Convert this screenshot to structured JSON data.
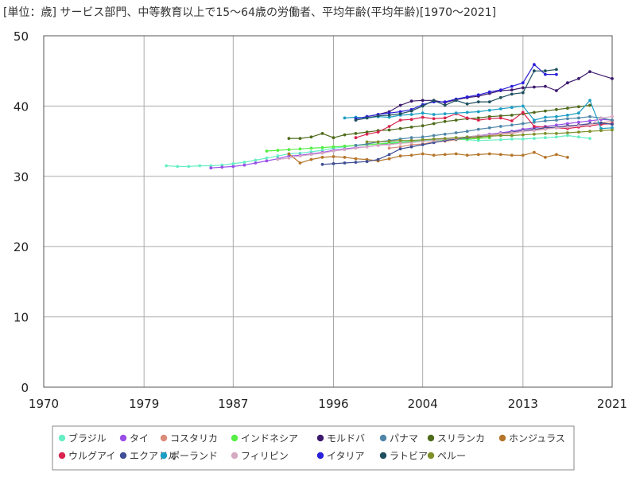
{
  "chart_data": {
    "type": "line",
    "title": "[単位：歳] サービス部門、中等教育以上で15～64歳の労働者、平均年齢(平均年齢)[1970～2021]",
    "xlabel": "",
    "ylabel": "",
    "xlim": [
      1970,
      2021
    ],
    "ylim": [
      0,
      50
    ],
    "x_ticks": [
      "1970",
      "1979",
      "1987",
      "1996",
      "2004",
      "2013",
      "2021"
    ],
    "y_ticks": [
      "0",
      "10",
      "20",
      "30",
      "40",
      "50"
    ],
    "grid": true,
    "legend_position": "bottom",
    "series": [
      {
        "name": "ブラジル",
        "color": "#66eec4",
        "x": [
          1981,
          1982,
          1983,
          1984,
          1985,
          1986,
          1987,
          1988,
          1989,
          1990,
          1991,
          1992,
          1993,
          1994,
          1995,
          1996,
          1997,
          1998,
          1999,
          2000,
          2001,
          2002,
          2003,
          2004,
          2005,
          2006,
          2007,
          2008,
          2009,
          2011,
          2012,
          2013,
          2014,
          2015,
          2016,
          2017,
          2018,
          2019
        ],
        "y": [
          31.5,
          31.4,
          31.4,
          31.5,
          31.5,
          31.6,
          31.8,
          32.0,
          32.3,
          32.6,
          32.9,
          33.2,
          33.3,
          33.5,
          33.7,
          34.0,
          34.2,
          34.4,
          34.5,
          34.6,
          34.8,
          34.9,
          35.0,
          35.1,
          35.2,
          35.3,
          35.3,
          35.2,
          35.1,
          35.2,
          35.3,
          35.3,
          35.4,
          35.5,
          35.6,
          35.8,
          35.6,
          35.4
        ]
      },
      {
        "name": "タイ",
        "color": "#9a4fe8",
        "x": [
          1985,
          1986,
          1987,
          1988,
          1989,
          1990,
          1991,
          1992,
          1993,
          1994,
          1995,
          1996,
          1997,
          1998,
          1999,
          2000,
          2001,
          2002,
          2003,
          2004,
          2005,
          2006,
          2007,
          2008,
          2009,
          2010,
          2011,
          2012,
          2013,
          2014,
          2015,
          2016,
          2017,
          2018,
          2019,
          2020,
          2021
        ],
        "y": [
          31.2,
          31.3,
          31.4,
          31.6,
          31.9,
          32.2,
          32.5,
          32.9,
          33.0,
          33.2,
          33.4,
          33.7,
          33.9,
          34.1,
          34.2,
          34.4,
          34.6,
          34.8,
          34.9,
          35.0,
          35.1,
          35.3,
          35.4,
          35.6,
          35.8,
          36.0,
          36.2,
          36.4,
          36.7,
          36.9,
          37.1,
          37.3,
          37.5,
          37.7,
          37.9,
          38.1,
          38.0
        ]
      },
      {
        "name": "コスタリカ",
        "color": "#d98c7a",
        "x": [
          2001,
          2002,
          2003,
          2004,
          2005,
          2006,
          2007,
          2008,
          2009,
          2010,
          2011,
          2012,
          2013,
          2014,
          2015,
          2016,
          2017,
          2018,
          2019,
          2020,
          2021
        ],
        "y": [
          34.0,
          34.2,
          34.5,
          34.6,
          34.9,
          35.0,
          35.2,
          35.4,
          35.5,
          35.8,
          36.0,
          36.1,
          36.4,
          36.6,
          36.8,
          37.0,
          37.1,
          37.3,
          37.4,
          37.6,
          37.8
        ]
      },
      {
        "name": "インドネシア",
        "color": "#55ee44",
        "x": [
          1990,
          1991,
          1992,
          1993,
          1994,
          1995,
          1996,
          1997,
          1998,
          1999,
          2000,
          2001,
          2002,
          2003,
          2004,
          2005,
          2006,
          2007,
          2008,
          2009,
          2010
        ],
        "y": [
          33.6,
          33.7,
          33.8,
          33.9,
          34.0,
          34.1,
          34.2,
          34.3,
          34.4,
          34.5,
          34.6,
          34.7,
          34.8,
          34.9,
          35.0,
          35.1,
          35.2,
          35.3,
          35.3,
          35.4,
          35.5
        ]
      },
      {
        "name": "モルドバ",
        "color": "#3d1a6e",
        "x": [
          1999,
          2000,
          2001,
          2002,
          2003,
          2004,
          2005,
          2006,
          2007,
          2008,
          2009,
          2010,
          2011,
          2012,
          2013,
          2014,
          2015,
          2016,
          2017,
          2018,
          2019,
          2021
        ],
        "y": [
          38.5,
          38.8,
          39.2,
          40.1,
          40.7,
          40.8,
          40.8,
          40.5,
          40.9,
          41.2,
          41.4,
          41.8,
          42.2,
          42.3,
          42.6,
          42.7,
          42.8,
          42.2,
          43.3,
          43.9,
          44.9,
          43.9
        ]
      },
      {
        "name": "パナマ",
        "color": "#4f86a8",
        "x": [
          1998,
          1999,
          2000,
          2001,
          2002,
          2003,
          2004,
          2005,
          2006,
          2007,
          2008,
          2009,
          2010,
          2011,
          2012,
          2013,
          2014,
          2015,
          2016,
          2017,
          2018,
          2019,
          2020,
          2021
        ],
        "y": [
          34.4,
          34.6,
          34.9,
          35.1,
          35.3,
          35.5,
          35.6,
          35.8,
          36.0,
          36.2,
          36.4,
          36.7,
          36.9,
          37.1,
          37.3,
          37.5,
          37.7,
          37.9,
          38.0,
          38.2,
          38.3,
          38.5,
          38.3,
          38.0
        ]
      },
      {
        "name": "スリランカ",
        "color": "#4f6b1c",
        "x": [
          1992,
          1993,
          1994,
          1995,
          1996,
          1997,
          1998,
          1999,
          2000,
          2001,
          2002,
          2003,
          2004,
          2005,
          2006,
          2007,
          2008,
          2009,
          2010,
          2011,
          2012,
          2013,
          2014,
          2015,
          2016,
          2017,
          2018,
          2019
        ],
        "y": [
          35.4,
          35.4,
          35.6,
          36.1,
          35.5,
          35.9,
          36.1,
          36.3,
          36.5,
          36.6,
          36.8,
          37.0,
          37.2,
          37.5,
          37.8,
          38.0,
          38.2,
          38.3,
          38.5,
          38.6,
          38.7,
          38.9,
          39.1,
          39.3,
          39.5,
          39.7,
          39.9,
          40.1
        ]
      },
      {
        "name": "ホンジュラス",
        "color": "#b5752a",
        "x": [
          1992,
          1993,
          1994,
          1995,
          1996,
          1997,
          1998,
          1999,
          2000,
          2001,
          2002,
          2003,
          2004,
          2005,
          2006,
          2007,
          2008,
          2009,
          2010,
          2011,
          2012,
          2013,
          2014,
          2015,
          2016,
          2017
        ],
        "y": [
          33.2,
          31.9,
          32.4,
          32.7,
          32.8,
          32.7,
          32.5,
          32.4,
          32.2,
          32.5,
          32.9,
          33.0,
          33.2,
          33.0,
          33.1,
          33.2,
          33.0,
          33.1,
          33.2,
          33.1,
          33.0,
          33.0,
          33.4,
          32.7,
          33.1,
          32.7
        ]
      },
      {
        "name": "ウルグアイ",
        "color": "#d9244f",
        "x": [
          1998,
          1999,
          2000,
          2001,
          2002,
          2003,
          2004,
          2005,
          2006,
          2007,
          2008,
          2009,
          2010,
          2011,
          2012,
          2013,
          2014,
          2015,
          2016,
          2017,
          2018,
          2019,
          2020,
          2021
        ],
        "y": [
          35.5,
          36.0,
          36.3,
          37.1,
          38.0,
          38.1,
          38.4,
          38.2,
          38.3,
          38.9,
          38.3,
          38.0,
          38.2,
          38.3,
          37.9,
          39.1,
          37.1,
          37.0,
          36.9,
          36.8,
          37.0,
          37.2,
          37.4,
          37.5
        ]
      },
      {
        "name": "エクアドル",
        "color": "#3f4f95",
        "x": [
          1995,
          1996,
          1997,
          1998,
          1999,
          2000,
          2001,
          2002,
          2003,
          2004,
          2005,
          2006,
          2007,
          2008,
          2009,
          2010,
          2011,
          2012,
          2013,
          2014,
          2015,
          2016,
          2017,
          2018,
          2019,
          2020,
          2021
        ],
        "y": [
          31.7,
          31.8,
          31.9,
          32.0,
          32.1,
          32.4,
          33.1,
          33.9,
          34.2,
          34.5,
          34.8,
          35.1,
          35.3,
          35.5,
          35.7,
          35.9,
          36.1,
          36.3,
          36.5,
          36.7,
          36.9,
          37.0,
          37.2,
          37.3,
          37.5,
          37.6,
          37.4
        ]
      },
      {
        "name": "ポーランド",
        "color": "#1a9ec4",
        "x": [
          1997,
          1998,
          1999,
          2000,
          2001,
          2002,
          2003,
          2004,
          2005,
          2006,
          2007,
          2008,
          2009,
          2010,
          2011,
          2012,
          2013,
          2014,
          2015,
          2016,
          2017,
          2018,
          2019,
          2020,
          2021
        ],
        "y": [
          38.3,
          38.4,
          38.3,
          38.5,
          38.4,
          38.7,
          38.8,
          39.0,
          38.8,
          38.9,
          39.0,
          39.1,
          39.2,
          39.4,
          39.6,
          39.8,
          40.0,
          38.0,
          38.4,
          38.5,
          38.7,
          39.0,
          40.8,
          36.8,
          36.9
        ]
      },
      {
        "name": "フィリピン",
        "color": "#d6a9c2",
        "x": [
          1991,
          1992,
          1993,
          1994,
          1995,
          1996,
          1997,
          1998,
          1999,
          2000,
          2001,
          2002,
          2003,
          2004,
          2005,
          2006,
          2007,
          2008,
          2009,
          2010,
          2011,
          2012,
          2013,
          2014,
          2015,
          2016,
          2017,
          2018,
          2019,
          2020,
          2021
        ],
        "y": [
          32.4,
          32.6,
          32.9,
          33.1,
          33.3,
          33.6,
          33.8,
          34.0,
          34.2,
          34.4,
          34.5,
          34.7,
          34.8,
          35.0,
          35.1,
          35.3,
          35.4,
          35.6,
          35.8,
          35.9,
          36.1,
          36.2,
          36.4,
          36.5,
          36.7,
          36.9,
          37.0,
          37.2,
          37.3,
          38.3,
          38.5
        ]
      },
      {
        "name": "イタリア",
        "color": "#2a1fd8",
        "x": [
          1998,
          1999,
          2000,
          2001,
          2002,
          2003,
          2004,
          2005,
          2006,
          2007,
          2008,
          2009,
          2010,
          2011,
          2012,
          2013,
          2014,
          2015,
          2016
        ],
        "y": [
          38.2,
          38.5,
          38.8,
          39.0,
          39.2,
          39.5,
          40.2,
          40.6,
          40.6,
          41.0,
          41.3,
          41.6,
          42.0,
          42.3,
          42.8,
          43.3,
          45.9,
          44.5,
          44.5
        ]
      },
      {
        "name": "ラトビア",
        "color": "#1f4f5e",
        "x": [
          1998,
          1999,
          2000,
          2001,
          2002,
          2003,
          2004,
          2005,
          2006,
          2007,
          2008,
          2009,
          2010,
          2011,
          2012,
          2013,
          2014,
          2015,
          2016
        ],
        "y": [
          38.0,
          38.3,
          38.6,
          38.7,
          38.9,
          39.3,
          40.0,
          40.8,
          40.1,
          40.8,
          40.3,
          40.6,
          40.6,
          41.2,
          41.7,
          41.9,
          45.0,
          45.0,
          45.2
        ]
      },
      {
        "name": "ペルー",
        "color": "#7f8f2a",
        "x": [
          1999,
          2000,
          2001,
          2002,
          2003,
          2004,
          2005,
          2006,
          2007,
          2008,
          2009,
          2010,
          2011,
          2012,
          2013,
          2014,
          2015,
          2016,
          2017,
          2018,
          2019,
          2020,
          2021
        ],
        "y": [
          34.9,
          34.9,
          35.0,
          35.1,
          35.1,
          35.2,
          35.3,
          35.4,
          35.5,
          35.6,
          35.6,
          35.7,
          35.8,
          35.8,
          35.9,
          36.0,
          36.1,
          36.1,
          36.2,
          36.3,
          36.4,
          36.5,
          36.6
        ]
      }
    ]
  }
}
